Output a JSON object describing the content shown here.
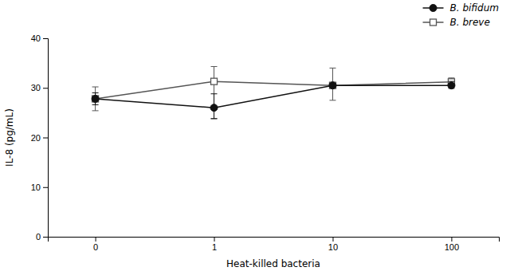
{
  "chart_data": {
    "type": "line",
    "xlabel": "Heat-killed bacteria",
    "ylabel": "IL-8 (pg/mL)",
    "categories": [
      "0",
      "1",
      "10",
      "100"
    ],
    "ylim": [
      0,
      40
    ],
    "yticks": [
      0,
      10,
      20,
      30,
      40
    ],
    "grid": false,
    "legend": "upper-right",
    "series": [
      {
        "name": "B. bifidum",
        "color": "#111111",
        "marker": "circle",
        "values": [
          27.8,
          26.0,
          30.5,
          30.5
        ],
        "yerr_low": [
          1.2,
          2.2,
          0.4,
          0.6
        ],
        "yerr_high": [
          1.2,
          2.8,
          0.4,
          0.8
        ]
      },
      {
        "name": "B. breve",
        "color": "#555555",
        "marker": "square",
        "values": [
          27.8,
          31.3,
          30.5,
          31.2
        ],
        "yerr_low": [
          2.4,
          7.5,
          3.0,
          0.5
        ],
        "yerr_high": [
          2.4,
          3.0,
          3.5,
          0.8
        ]
      }
    ]
  }
}
